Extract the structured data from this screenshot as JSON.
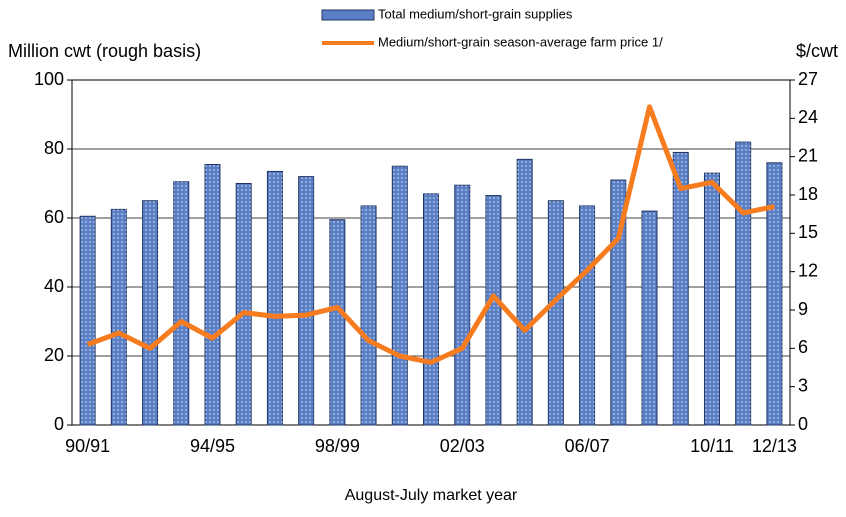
{
  "chart_data": {
    "type": "bar-line",
    "y_label": "Million cwt (rough basis)",
    "y2_label": "$/cwt",
    "x_label": "August-July market year",
    "categories": [
      "90/91",
      null,
      null,
      null,
      "94/95",
      null,
      null,
      null,
      "98/99",
      null,
      null,
      null,
      "02/03",
      null,
      null,
      null,
      "06/07",
      null,
      null,
      null,
      "10/11",
      null,
      "12/13"
    ],
    "series": [
      {
        "name": "Total medium/short-grain supplies",
        "color": "#5a7fc4",
        "type": "bar",
        "values": [
          60.5,
          62.5,
          65,
          70.5,
          75.5,
          70,
          73.5,
          72,
          59.5,
          63.5,
          75,
          67,
          69.5,
          66.5,
          77,
          65,
          63.5,
          71,
          62,
          79,
          73,
          82,
          76
        ]
      },
      {
        "name": "Medium/short-grain season-average farm price 1/",
        "color": "#f77b1f",
        "type": "line",
        "axis": "y2",
        "values": [
          6.3,
          7.2,
          6.0,
          8.1,
          6.8,
          8.8,
          8.5,
          8.6,
          9.2,
          6.6,
          5.4,
          4.9,
          6.0,
          10.1,
          7.4,
          9.8,
          12.1,
          14.6,
          24.9,
          18.5,
          19.0,
          16.6,
          17.1
        ]
      }
    ],
    "ylim": [
      0,
      100
    ],
    "yticks": [
      0,
      20,
      40,
      60,
      80,
      100
    ],
    "y2lim": [
      0,
      27
    ],
    "y2ticks": [
      0,
      3,
      6,
      9,
      12,
      15,
      18,
      21,
      24,
      27
    ],
    "grid": true
  }
}
